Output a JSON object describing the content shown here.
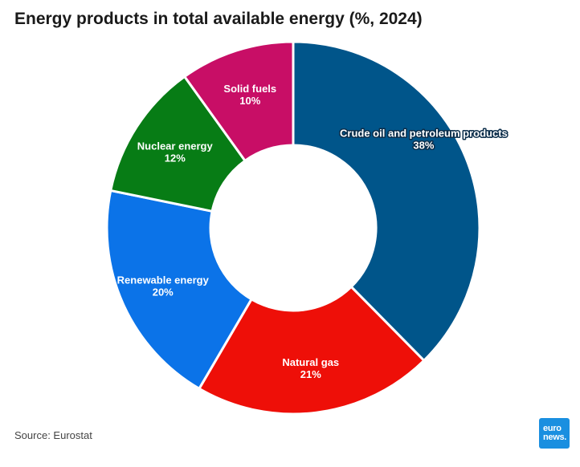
{
  "header": {
    "title": "Energy products in total available energy (%, 2024)"
  },
  "footer": {
    "source": "Source: Eurostat"
  },
  "logo": {
    "line1": "euro",
    "line2": "news."
  },
  "chart_data": {
    "type": "pie",
    "title": "Energy products in total available energy (%, 2024)",
    "donut": true,
    "unit": "%",
    "slices": [
      {
        "label": "Crude oil and petroleum products",
        "value": 38,
        "display": "38%",
        "color": "#00558a",
        "outline": true
      },
      {
        "label": "Natural gas",
        "value": 21,
        "display": "21%",
        "color": "#ee0f08",
        "outline": false
      },
      {
        "label": "Renewable energy",
        "value": 20,
        "display": "20%",
        "color": "#0b73e8",
        "outline": false
      },
      {
        "label": "Nuclear energy",
        "value": 12,
        "display": "12%",
        "color": "#077c15",
        "outline": false
      },
      {
        "label": "Solid fuels",
        "value": 10,
        "display": "10%",
        "color": "#c80e66",
        "outline": false
      }
    ]
  }
}
